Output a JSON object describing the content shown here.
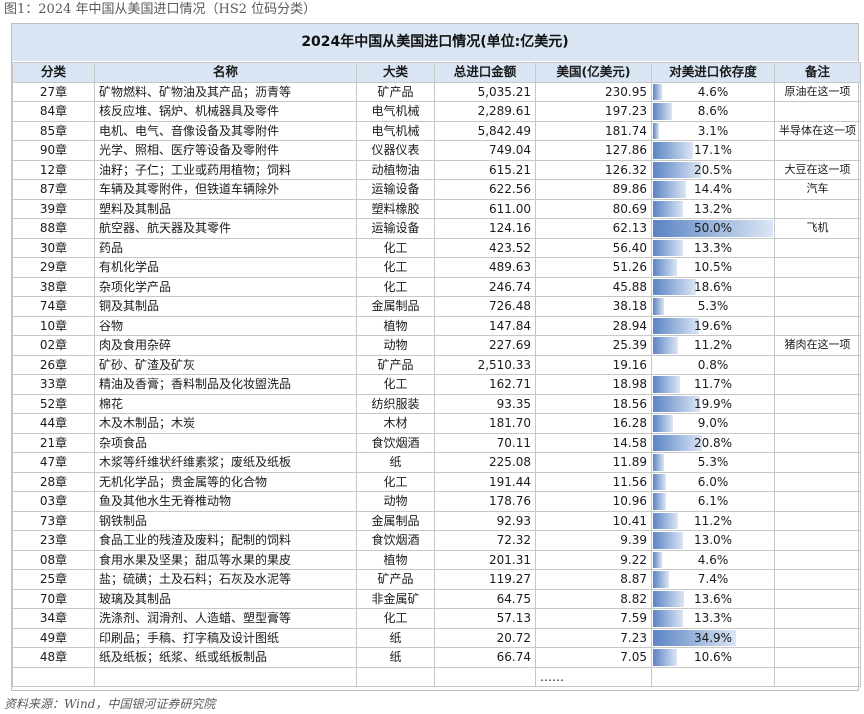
{
  "figure_title": "图1：2024 年中国从美国进口情况（HS2 位码分类）",
  "table_title": "2024年中国从美国进口情况(单位:亿美元)",
  "headers": [
    "分类",
    "名称",
    "大类",
    "总进口金额",
    "美国(亿美元)",
    "对美进口依存度",
    "备注"
  ],
  "rows": [
    {
      "code": "27章",
      "name": "矿物燃料、矿物油及其产品；沥青等",
      "cat": "矿产品",
      "total": "5,035.21",
      "us": "230.95",
      "dep": "4.6%",
      "dep_value": 4.6,
      "note": "原油在这一项"
    },
    {
      "code": "84章",
      "name": "核反应堆、锅炉、机械器具及零件",
      "cat": "电气机械",
      "total": "2,289.61",
      "us": "197.23",
      "dep": "8.6%",
      "dep_value": 8.6,
      "note": ""
    },
    {
      "code": "85章",
      "name": "电机、电气、音像设备及其零附件",
      "cat": "电气机械",
      "total": "5,842.49",
      "us": "181.74",
      "dep": "3.1%",
      "dep_value": 3.1,
      "note": "半导体在这一项"
    },
    {
      "code": "90章",
      "name": "光学、照相、医疗等设备及零附件",
      "cat": "仪器仪表",
      "total": "749.04",
      "us": "127.86",
      "dep": "17.1%",
      "dep_value": 17.1,
      "note": ""
    },
    {
      "code": "12章",
      "name": "油籽；子仁；工业或药用植物；饲料",
      "cat": "动植物油",
      "total": "615.21",
      "us": "126.32",
      "dep": "20.5%",
      "dep_value": 20.5,
      "note": "大豆在这一项"
    },
    {
      "code": "87章",
      "name": "车辆及其零附件，但铁道车辆除外",
      "cat": "运输设备",
      "total": "622.56",
      "us": "89.86",
      "dep": "14.4%",
      "dep_value": 14.4,
      "note": "汽车"
    },
    {
      "code": "39章",
      "name": "塑料及其制品",
      "cat": "塑料橡胶",
      "total": "611.00",
      "us": "80.69",
      "dep": "13.2%",
      "dep_value": 13.2,
      "note": ""
    },
    {
      "code": "88章",
      "name": "航空器、航天器及其零件",
      "cat": "运输设备",
      "total": "124.16",
      "us": "62.13",
      "dep": "50.0%",
      "dep_value": 50.0,
      "note": "飞机"
    },
    {
      "code": "30章",
      "name": "药品",
      "cat": "化工",
      "total": "423.52",
      "us": "56.40",
      "dep": "13.3%",
      "dep_value": 13.3,
      "note": ""
    },
    {
      "code": "29章",
      "name": "有机化学品",
      "cat": "化工",
      "total": "489.63",
      "us": "51.26",
      "dep": "10.5%",
      "dep_value": 10.5,
      "note": ""
    },
    {
      "code": "38章",
      "name": "杂项化学产品",
      "cat": "化工",
      "total": "246.74",
      "us": "45.88",
      "dep": "18.6%",
      "dep_value": 18.6,
      "note": ""
    },
    {
      "code": "74章",
      "name": "铜及其制品",
      "cat": "金属制品",
      "total": "726.48",
      "us": "38.18",
      "dep": "5.3%",
      "dep_value": 5.3,
      "note": ""
    },
    {
      "code": "10章",
      "name": "谷物",
      "cat": "植物",
      "total": "147.84",
      "us": "28.94",
      "dep": "19.6%",
      "dep_value": 19.6,
      "note": ""
    },
    {
      "code": "02章",
      "name": "肉及食用杂碎",
      "cat": "动物",
      "total": "227.69",
      "us": "25.39",
      "dep": "11.2%",
      "dep_value": 11.2,
      "note": "猪肉在这一项"
    },
    {
      "code": "26章",
      "name": "矿砂、矿渣及矿灰",
      "cat": "矿产品",
      "total": "2,510.33",
      "us": "19.16",
      "dep": "0.8%",
      "dep_value": 0.8,
      "note": ""
    },
    {
      "code": "33章",
      "name": "精油及香膏；香料制品及化妆盥洗品",
      "cat": "化工",
      "total": "162.71",
      "us": "18.98",
      "dep": "11.7%",
      "dep_value": 11.7,
      "note": ""
    },
    {
      "code": "52章",
      "name": "棉花",
      "cat": "纺织服装",
      "total": "93.35",
      "us": "18.56",
      "dep": "19.9%",
      "dep_value": 19.9,
      "note": ""
    },
    {
      "code": "44章",
      "name": "木及木制品；木炭",
      "cat": "木材",
      "total": "181.70",
      "us": "16.28",
      "dep": "9.0%",
      "dep_value": 9.0,
      "note": ""
    },
    {
      "code": "21章",
      "name": "杂项食品",
      "cat": "食饮烟酒",
      "total": "70.11",
      "us": "14.58",
      "dep": "20.8%",
      "dep_value": 20.8,
      "note": ""
    },
    {
      "code": "47章",
      "name": "木浆等纤维状纤维素浆；废纸及纸板",
      "cat": "纸",
      "total": "225.08",
      "us": "11.89",
      "dep": "5.3%",
      "dep_value": 5.3,
      "note": ""
    },
    {
      "code": "28章",
      "name": "无机化学品；贵金属等的化合物",
      "cat": "化工",
      "total": "191.44",
      "us": "11.56",
      "dep": "6.0%",
      "dep_value": 6.0,
      "note": ""
    },
    {
      "code": "03章",
      "name": "鱼及其他水生无脊椎动物",
      "cat": "动物",
      "total": "178.76",
      "us": "10.96",
      "dep": "6.1%",
      "dep_value": 6.1,
      "note": ""
    },
    {
      "code": "73章",
      "name": "钢铁制品",
      "cat": "金属制品",
      "total": "92.93",
      "us": "10.41",
      "dep": "11.2%",
      "dep_value": 11.2,
      "note": ""
    },
    {
      "code": "23章",
      "name": "食品工业的残渣及废料；配制的饲料",
      "cat": "食饮烟酒",
      "total": "72.32",
      "us": "9.39",
      "dep": "13.0%",
      "dep_value": 13.0,
      "note": ""
    },
    {
      "code": "08章",
      "name": "食用水果及坚果；甜瓜等水果的果皮",
      "cat": "植物",
      "total": "201.31",
      "us": "9.22",
      "dep": "4.6%",
      "dep_value": 4.6,
      "note": ""
    },
    {
      "code": "25章",
      "name": "盐；硫磺；土及石料；石灰及水泥等",
      "cat": "矿产品",
      "total": "119.27",
      "us": "8.87",
      "dep": "7.4%",
      "dep_value": 7.4,
      "note": ""
    },
    {
      "code": "70章",
      "name": "玻璃及其制品",
      "cat": "非金属矿",
      "total": "64.75",
      "us": "8.82",
      "dep": "13.6%",
      "dep_value": 13.6,
      "note": ""
    },
    {
      "code": "34章",
      "name": "洗涤剂、润滑剂、人造蜡、塑型膏等",
      "cat": "化工",
      "total": "57.13",
      "us": "7.59",
      "dep": "13.3%",
      "dep_value": 13.3,
      "note": ""
    },
    {
      "code": "49章",
      "name": "印刷品；手稿、打字稿及设计图纸",
      "cat": "纸",
      "total": "20.72",
      "us": "7.23",
      "dep": "34.9%",
      "dep_value": 34.9,
      "note": ""
    },
    {
      "code": "48章",
      "name": "纸及纸板；纸浆、纸或纸板制品",
      "cat": "纸",
      "total": "66.74",
      "us": "7.05",
      "dep": "10.6%",
      "dep_value": 10.6,
      "note": ""
    }
  ],
  "ellipsis": "……",
  "source": "资料来源：Wind，中国银河证券研究院"
}
